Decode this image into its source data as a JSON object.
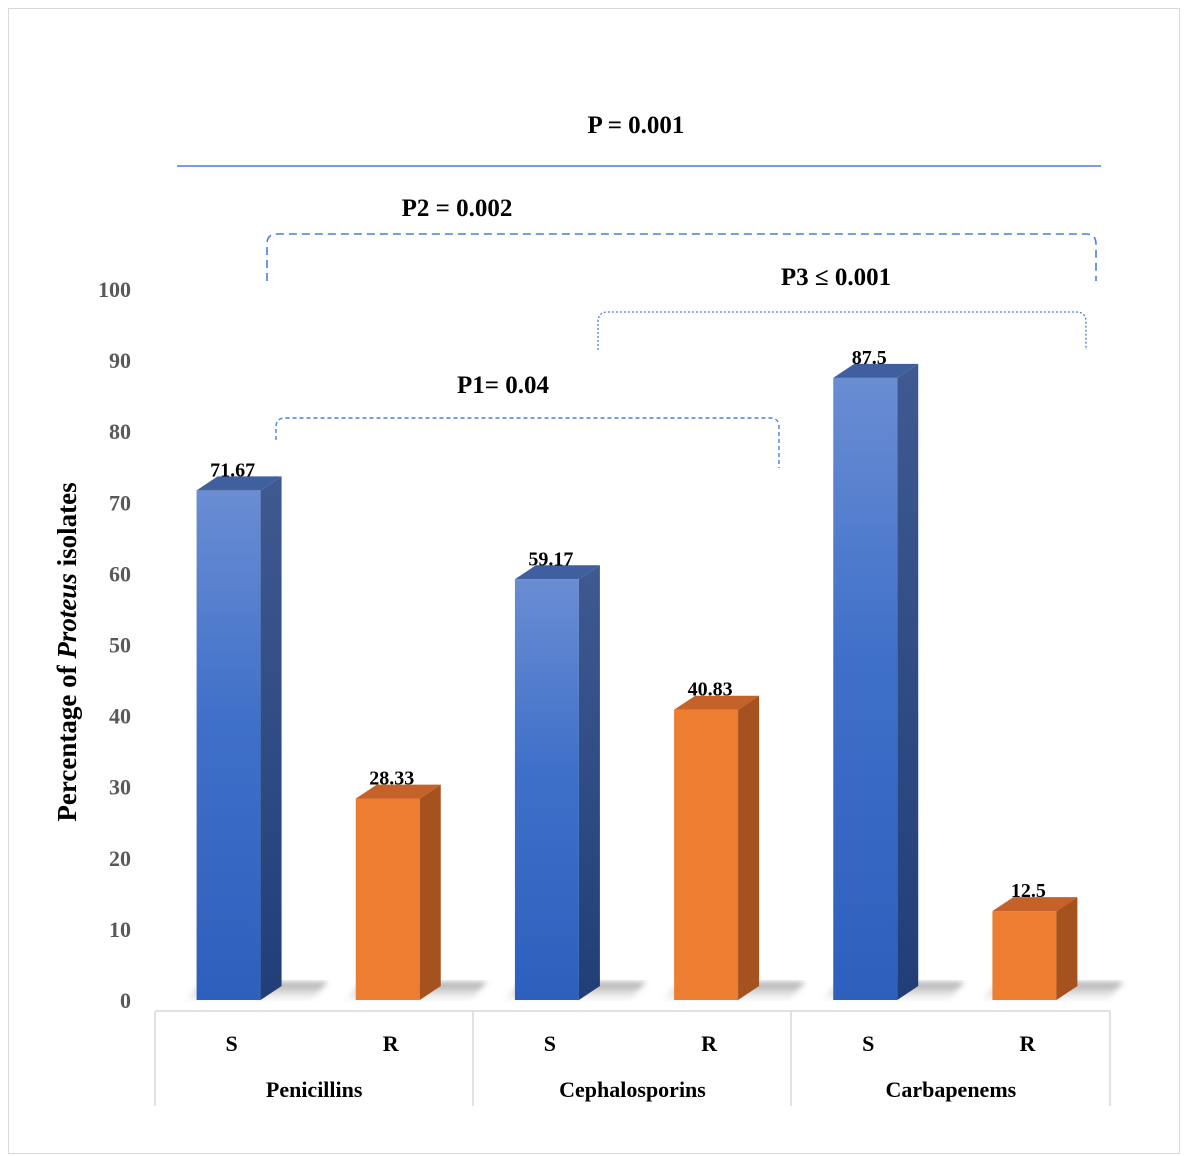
{
  "chart_data": {
    "type": "bar",
    "ylabel_prefix": "Percentage of ",
    "ylabel_italic": "Proteus",
    "ylabel_suffix": " isolates",
    "ylim": [
      0,
      100
    ],
    "yticks": [
      0,
      10,
      20,
      30,
      40,
      50,
      60,
      70,
      80,
      90,
      100
    ],
    "groups": [
      "Penicillins",
      "Cephalosporins",
      "Carbapenems"
    ],
    "categories": [
      "S",
      "R",
      "S",
      "R",
      "S",
      "R"
    ],
    "values": [
      71.67,
      28.33,
      59.17,
      40.83,
      87.5,
      12.5
    ],
    "value_labels": [
      "71.67",
      "28.33",
      "59.17",
      "40.83",
      "87.5",
      "12.5"
    ],
    "colors": {
      "S": "#4472c4",
      "R": "#ed7d31"
    },
    "annotations": {
      "p_overall": "P = 0.001",
      "p2": "P2 = 0.002",
      "p3": "P3 ≤ 0.001",
      "p1": "P1= 0.04"
    },
    "grid": false,
    "legend": "none"
  }
}
